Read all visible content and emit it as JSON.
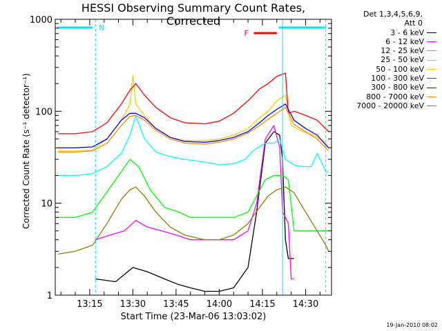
{
  "chart_data": {
    "type": "line",
    "title": "HESSI Observing Summary Count Rates, Corrected",
    "xlabel": "Start Time (23-Mar-06 13:03:02)",
    "ylabel": "Corrected Count Rate (s⁻¹ detector⁻¹)",
    "y_scale": "log",
    "ylim": [
      1,
      1000
    ],
    "xlim": [
      "13:03:02",
      "14:39:00"
    ],
    "ytick_labels": [
      "1",
      "10",
      "100",
      "1000"
    ],
    "xtick_labels": [
      "13:15",
      "13:30",
      "13:45",
      "14:00",
      "14:15",
      "14:30"
    ],
    "legend_header": [
      "Det 1,3,4,5,6,9,",
      "Att 0"
    ],
    "legend_position": "right-outside",
    "annotations": {
      "night_marker": "N",
      "flare_marker": "F",
      "night_start": "13:17",
      "night_end": "14:37",
      "flare_interval": [
        "14:12",
        "14:20"
      ],
      "saa_line_at": "14:22"
    },
    "footer_date": "19-Jan-2010 08:02",
    "series": [
      {
        "name": "3 - 6 keV",
        "color": "#000000",
        "x": [
          "13:17",
          "13:24",
          "13:30",
          "13:35",
          "13:41",
          "13:46",
          "13:50",
          "13:55",
          "14:00",
          "14:05",
          "14:10",
          "14:13",
          "14:16",
          "14:19",
          "14:21",
          "14:22",
          "14:23",
          "14:24",
          "14:26"
        ],
        "y": [
          1.5,
          1.4,
          2,
          1.8,
          1.5,
          1.3,
          1.2,
          1.1,
          1.1,
          1.2,
          2,
          8,
          45,
          60,
          55,
          30,
          4,
          2.5,
          2.5
        ]
      },
      {
        "name": "6 - 12 keV",
        "color": "#ff00ff",
        "x": [
          "13:17",
          "13:22",
          "13:27",
          "13:31",
          "13:35",
          "13:40",
          "13:45",
          "13:50",
          "13:55",
          "14:00",
          "14:05",
          "14:10",
          "14:13",
          "14:16",
          "14:19",
          "14:21",
          "14:22",
          "14:23",
          "14:24",
          "14:25",
          "14:26"
        ],
        "y": [
          4,
          4.5,
          5,
          6.5,
          5.5,
          5,
          4.5,
          4,
          4,
          4,
          4,
          5,
          10,
          50,
          70,
          40,
          8,
          7,
          6,
          1.5,
          1.5
        ]
      },
      {
        "name": "12 - 25 keV",
        "color": "#00ff00",
        "x": [
          "13:04",
          "13:10",
          "13:16",
          "13:20",
          "13:25",
          "13:29",
          "13:32",
          "13:36",
          "13:41",
          "13:46",
          "13:50",
          "13:55",
          "14:00",
          "14:05",
          "14:10",
          "14:13",
          "14:16",
          "14:19",
          "14:22",
          "14:24",
          "14:26",
          "14:30",
          "14:34",
          "14:37",
          "14:38"
        ],
        "y": [
          7,
          7,
          8,
          12,
          20,
          30,
          25,
          14,
          9,
          8,
          7,
          7,
          7,
          7,
          8,
          12,
          18,
          20,
          20,
          18,
          5,
          5,
          5,
          5,
          5
        ]
      },
      {
        "name": "25 - 50 keV",
        "color": "#00ffff",
        "x": [
          "13:04",
          "13:10",
          "13:16",
          "13:21",
          "13:26",
          "13:29",
          "13:31",
          "13:34",
          "13:38",
          "13:43",
          "13:48",
          "13:55",
          "14:00",
          "14:05",
          "14:09",
          "14:12",
          "14:16",
          "14:19",
          "14:21",
          "14:23",
          "14:26",
          "14:29",
          "14:32",
          "14:34",
          "14:37",
          "14:38"
        ],
        "y": [
          20,
          20,
          21,
          25,
          35,
          55,
          90,
          50,
          36,
          32,
          30,
          28,
          26,
          27,
          30,
          38,
          45,
          45,
          50,
          30,
          26,
          25,
          25,
          35,
          22,
          22
        ]
      },
      {
        "name": "50 - 100 keV",
        "color": "#ffcc00",
        "x": [
          "13:04",
          "13:10",
          "13:16",
          "13:21",
          "13:26",
          "13:29",
          "13:30",
          "13:31",
          "13:34",
          "13:38",
          "13:43",
          "13:48",
          "13:55",
          "14:00",
          "14:05",
          "14:10",
          "14:14",
          "14:17",
          "14:20",
          "14:23",
          "14:25",
          "14:29",
          "14:33",
          "14:36",
          "14:38"
        ],
        "y": [
          37,
          37,
          38,
          50,
          80,
          120,
          245,
          120,
          90,
          65,
          52,
          48,
          48,
          50,
          55,
          65,
          85,
          100,
          130,
          150,
          70,
          60,
          55,
          48,
          40
        ]
      },
      {
        "name": "100 - 300 keV",
        "color": "#ff0000",
        "x": [
          "13:04",
          "13:10",
          "13:16",
          "13:21",
          "13:26",
          "13:29",
          "13:31",
          "13:34",
          "13:38",
          "13:43",
          "13:48",
          "13:55",
          "14:00",
          "14:05",
          "14:10",
          "14:14",
          "14:17",
          "14:20",
          "14:23",
          "14:24",
          "14:26",
          "14:30",
          "14:34",
          "14:38"
        ],
        "y": [
          57,
          57,
          60,
          75,
          120,
          170,
          200,
          150,
          110,
          85,
          75,
          73,
          78,
          95,
          130,
          175,
          200,
          240,
          260,
          95,
          100,
          90,
          80,
          60
        ]
      },
      {
        "name": "300 - 800 keV",
        "color": "#0000ff",
        "x": [
          "13:04",
          "13:10",
          "13:16",
          "13:21",
          "13:26",
          "13:29",
          "13:31",
          "13:34",
          "13:38",
          "13:43",
          "13:48",
          "13:55",
          "14:00",
          "14:05",
          "14:10",
          "14:14",
          "14:17",
          "14:20",
          "14:23",
          "14:26",
          "14:30",
          "14:34",
          "14:38"
        ],
        "y": [
          40,
          40,
          41,
          50,
          80,
          95,
          95,
          85,
          65,
          52,
          47,
          46,
          48,
          52,
          60,
          75,
          90,
          105,
          120,
          80,
          65,
          55,
          40
        ]
      },
      {
        "name": "800 - 7000 keV",
        "color": "#ff8800",
        "x": [
          "13:04",
          "13:10",
          "13:16",
          "13:21",
          "13:26",
          "13:29",
          "13:31",
          "13:34",
          "13:38",
          "13:43",
          "13:48",
          "13:55",
          "14:00",
          "14:05",
          "14:10",
          "14:14",
          "14:17",
          "14:20",
          "14:23",
          "14:26",
          "14:30",
          "14:34",
          "14:38"
        ],
        "y": [
          36,
          36,
          37,
          45,
          70,
          88,
          90,
          80,
          62,
          50,
          45,
          44,
          46,
          50,
          58,
          70,
          82,
          95,
          110,
          72,
          60,
          50,
          37
        ]
      },
      {
        "name": "7000 - 20000 keV",
        "color": "#8b7d00",
        "x": [
          "13:04",
          "13:10",
          "13:16",
          "13:21",
          "13:26",
          "13:29",
          "13:31",
          "13:34",
          "13:38",
          "13:43",
          "13:48",
          "13:55",
          "14:00",
          "14:05",
          "14:10",
          "14:14",
          "14:17",
          "14:20",
          "14:23",
          "14:26",
          "14:30",
          "14:34",
          "14:37",
          "14:38"
        ],
        "y": [
          2.8,
          3,
          3.5,
          6,
          11,
          14,
          15,
          12,
          8,
          5.5,
          4.5,
          4,
          4,
          4.5,
          6,
          9,
          12,
          14,
          15,
          13,
          8,
          5,
          3.5,
          3
        ]
      }
    ]
  }
}
